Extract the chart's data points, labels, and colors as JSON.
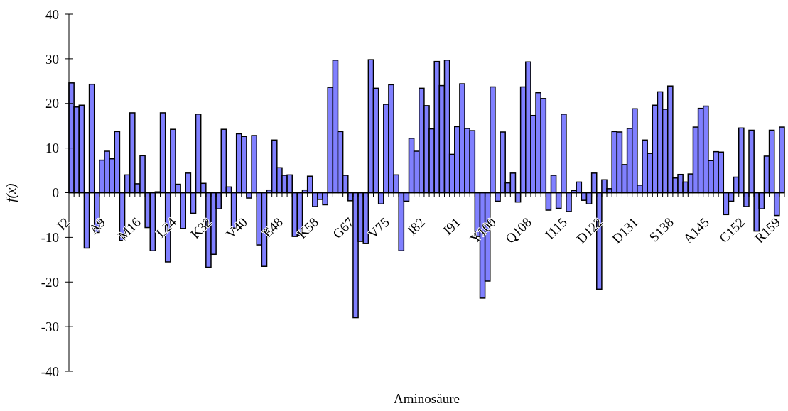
{
  "chart_data": {
    "type": "bar",
    "xlabel": "Aminosäure",
    "ylabel": "f(x)",
    "categories": [
      "I2",
      null,
      null,
      null,
      null,
      null,
      null,
      "A9",
      null,
      null,
      null,
      null,
      null,
      null,
      "M16",
      null,
      null,
      null,
      null,
      null,
      null,
      "L24",
      null,
      null,
      null,
      null,
      null,
      null,
      "K32",
      null,
      null,
      null,
      null,
      null,
      null,
      "V40",
      null,
      null,
      null,
      null,
      null,
      null,
      "E48",
      null,
      null,
      null,
      null,
      null,
      null,
      "K58",
      null,
      null,
      null,
      null,
      null,
      null,
      "G67",
      null,
      null,
      null,
      null,
      null,
      null,
      "V75",
      null,
      null,
      null,
      null,
      null,
      null,
      "I82",
      null,
      null,
      null,
      null,
      null,
      null,
      "I91",
      null,
      null,
      null,
      null,
      null,
      null,
      "Y100",
      null,
      null,
      null,
      null,
      null,
      null,
      "Q108",
      null,
      null,
      null,
      null,
      null,
      null,
      "I115",
      null,
      null,
      null,
      null,
      null,
      null,
      "D122",
      null,
      null,
      null,
      null,
      null,
      null,
      "D131",
      null,
      null,
      null,
      null,
      null,
      null,
      "S138",
      null,
      null,
      null,
      null,
      null,
      null,
      "A145",
      null,
      null,
      null,
      null,
      null,
      null,
      "C152",
      null,
      null,
      null,
      null,
      null,
      null,
      "R159"
    ],
    "values": [
      24.6,
      19.2,
      19.6,
      -12.4,
      24.3,
      -8.9,
      7.3,
      9.3,
      7.6,
      13.7,
      -10.7,
      4.0,
      17.9,
      2.0,
      8.3,
      -7.8,
      -13.0,
      0.2,
      17.9,
      -15.5,
      14.2,
      1.9,
      -8.0,
      4.4,
      -4.6,
      17.6,
      2.1,
      -16.7,
      -13.8,
      -3.6,
      14.2,
      1.3,
      -7.9,
      13.2,
      12.6,
      -1.2,
      12.8,
      -11.7,
      -16.5,
      0.6,
      11.8,
      5.6,
      3.9,
      4.0,
      -9.8,
      -9.5,
      0.6,
      3.7,
      -3.1,
      -1.5,
      -2.7,
      23.6,
      29.7,
      13.7,
      3.9,
      -1.8,
      -28.0,
      -10.9,
      -11.4,
      29.8,
      23.4,
      -2.5,
      19.8,
      24.2,
      4.0,
      -13.0,
      -1.9,
      12.2,
      9.3,
      23.4,
      19.5,
      14.3,
      29.4,
      24.0,
      29.7,
      8.6,
      14.8,
      24.4,
      14.4,
      13.9,
      -9.8,
      -23.6,
      -19.8,
      23.7,
      -1.9,
      13.6,
      2.2,
      4.4,
      -2.1,
      23.7,
      29.3,
      17.3,
      22.4,
      21.1,
      -3.9,
      3.9,
      -3.5,
      17.6,
      -4.2,
      0.5,
      2.4,
      -1.7,
      -2.5,
      4.4,
      -21.6,
      2.9,
      0.9,
      13.7,
      13.6,
      6.3,
      14.4,
      18.8,
      1.7,
      11.8,
      8.8,
      19.6,
      22.6,
      18.7,
      23.9,
      3.3,
      4.1,
      2.4,
      4.2,
      14.7,
      18.9,
      19.4,
      7.2,
      9.2,
      9.1,
      -4.9,
      -1.9,
      3.5,
      14.5,
      -3.1,
      14.0,
      -8.6,
      -3.6,
      8.2,
      14.0,
      -5.1,
      14.7
    ],
    "color": "#8080ff",
    "ylim": [
      -40,
      40
    ],
    "yticks": [
      -40,
      -30,
      -20,
      -10,
      0,
      10,
      20,
      30,
      40
    ]
  }
}
